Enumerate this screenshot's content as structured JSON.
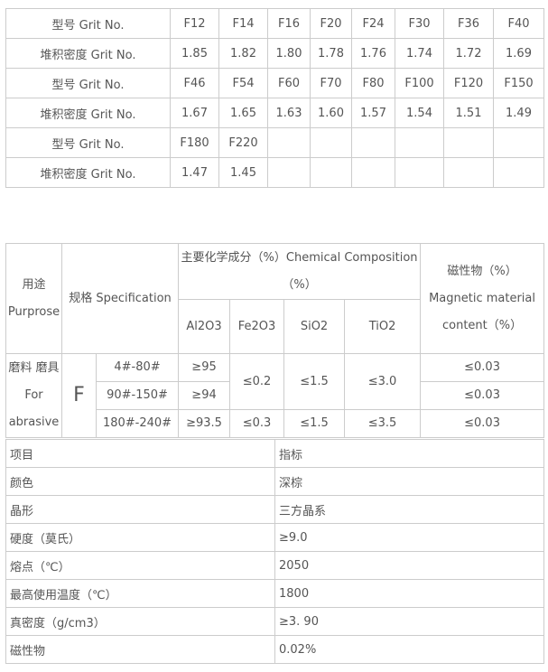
{
  "grit_table": {
    "rows": [
      {
        "label": "型号 Grit No.",
        "cells": [
          "F12",
          "F14",
          "F16",
          "F20",
          "F24",
          "F30",
          "F36",
          "F40"
        ]
      },
      {
        "label": "堆积密度 Grit No.",
        "cells": [
          "1.85",
          "1.82",
          "1.80",
          "1.78",
          "1.76",
          "1.74",
          "1.72",
          "1.69"
        ]
      },
      {
        "label": "型号 Grit No.",
        "cells": [
          "F46",
          "F54",
          "F60",
          "F70",
          "F80",
          "F100",
          "F120",
          "F150"
        ]
      },
      {
        "label": "堆积密度 Grit No.",
        "cells": [
          "1.67",
          "1.65",
          "1.63",
          "1.60",
          "1.57",
          "1.54",
          "1.51",
          "1.49"
        ]
      },
      {
        "label": "型号 Grit No.",
        "cells": [
          "F180",
          "F220",
          "",
          "",
          "",
          "",
          "",
          ""
        ]
      },
      {
        "label": "堆积密度 Grit No.",
        "cells": [
          "1.47",
          "1.45",
          "",
          "",
          "",
          "",
          "",
          ""
        ]
      }
    ]
  },
  "chem_table": {
    "purpose_header": "用途 Purprose",
    "spec_header": "规格 Specification",
    "chem_header": "主要化学成分（%）Chemical Composition（%）",
    "magnetic_header": "磁性物（%）Magnetic material content（%）",
    "sub_headers": [
      "Al2O3",
      "Fe2O3",
      "SiO2",
      "TiO2"
    ],
    "purpose": "磨料 磨具 For abrasive",
    "grade": "F",
    "rows": [
      {
        "spec": "4#-80#",
        "al2o3": "≥95",
        "magnetic": "≤0.03"
      },
      {
        "spec": "90#-150#",
        "al2o3": "≥94",
        "magnetic": "≤0.03"
      },
      {
        "spec": "180#-240#",
        "al2o3": "≥93.5",
        "fe2o3": "≤0.3",
        "sio2": "≤1.5",
        "tio2": "≤3.5",
        "magnetic": "≤0.03"
      }
    ],
    "merged_fe2o3": "≤0.2",
    "merged_sio2": "≤1.5",
    "merged_tio2": "≤3.0"
  },
  "props_table": {
    "rows": [
      [
        "项目",
        "指标"
      ],
      [
        "颜色",
        "深棕"
      ],
      [
        "晶形",
        "三方晶系"
      ],
      [
        "硬度（莫氏）",
        "≥9.0"
      ],
      [
        "熔点（℃）",
        "2050"
      ],
      [
        "最高使用温度（℃）",
        "1800"
      ],
      [
        "真密度（g/cm3）",
        "≥3. 90"
      ],
      [
        "磁性物",
        "0.02%"
      ]
    ]
  }
}
